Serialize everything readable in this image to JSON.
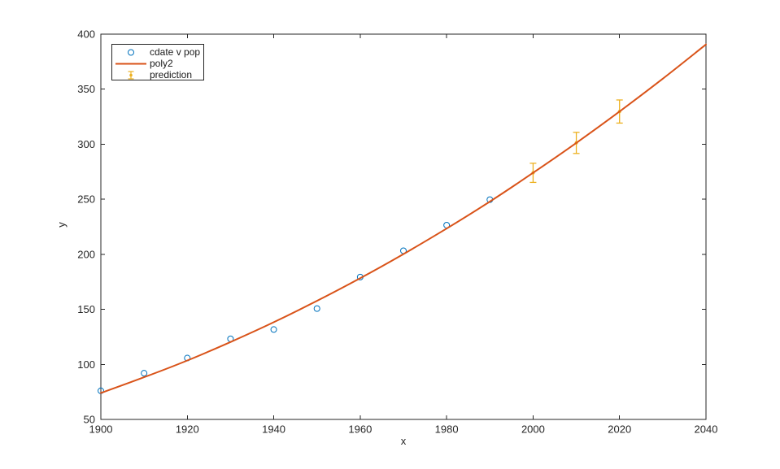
{
  "window": {
    "background": "#ffffff"
  },
  "chart_data": {
    "type": "scatter",
    "title": "",
    "xlabel": "x",
    "ylabel": "y",
    "xlim": [
      1900,
      2040
    ],
    "ylim": [
      50,
      400
    ],
    "xticks": [
      1900,
      1920,
      1940,
      1960,
      1980,
      2000,
      2020,
      2040
    ],
    "yticks": [
      50,
      100,
      150,
      200,
      250,
      300,
      350,
      400
    ],
    "grid": false,
    "box": true,
    "tick_direction": "in",
    "axis_color": "#262626",
    "legend": {
      "position": "northwest",
      "border_color": "#262626",
      "background": "#ffffff"
    },
    "series": [
      {
        "name": "cdate v pop",
        "type": "scatter",
        "marker": "circle",
        "color": "#0072BD",
        "x": [
          1900,
          1910,
          1920,
          1930,
          1940,
          1950,
          1960,
          1970,
          1980,
          1990
        ],
        "y": [
          75.995,
          91.972,
          105.711,
          123.203,
          131.669,
          150.697,
          179.323,
          203.212,
          226.505,
          249.633
        ]
      },
      {
        "name": "poly2",
        "type": "line",
        "color": "#D95319",
        "x": [
          1900,
          1910,
          1920,
          1930,
          1940,
          1950,
          1960,
          1970,
          1980,
          1990,
          2000,
          2010,
          2020,
          2030,
          2040
        ],
        "y": [
          74.0,
          88.3,
          103.5,
          120.3,
          138.3,
          157.7,
          178.3,
          200.2,
          223.4,
          247.9,
          274.0,
          301.2,
          329.7,
          359.5,
          390.6
        ]
      },
      {
        "name": "prediction",
        "type": "errorbar",
        "color": "#EDB120",
        "x": [
          2000,
          2010,
          2020
        ],
        "y": [
          274.0,
          301.2,
          329.7
        ],
        "yerr": [
          8.7,
          9.6,
          10.5
        ]
      }
    ]
  }
}
